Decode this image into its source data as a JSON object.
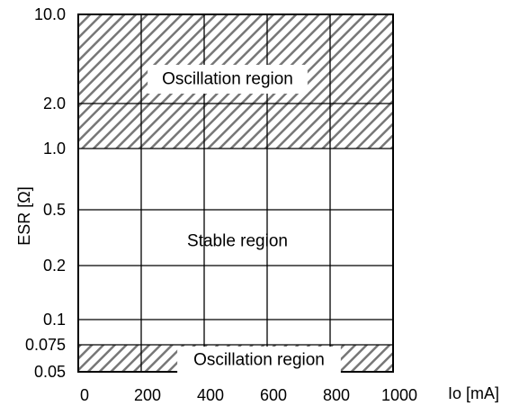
{
  "chart_data": {
    "type": "area",
    "title": "",
    "xlabel": "Io [mA]",
    "ylabel": "ESR [Ω]",
    "xlim": [
      0,
      1000
    ],
    "ylim": [
      0.05,
      10.0
    ],
    "x_ticks": [
      0,
      200,
      400,
      600,
      800,
      1000
    ],
    "x_tick_labels": [
      "0",
      "200",
      "400",
      "600",
      "800",
      "1000"
    ],
    "y_ticks": [
      0.05,
      0.075,
      0.1,
      0.2,
      0.5,
      1.0,
      2.0,
      10.0
    ],
    "y_tick_labels": [
      "0.05",
      "0.075",
      "0.1",
      "0.2",
      "0.5",
      "1.0",
      "2.0",
      "10.0"
    ],
    "grid": true,
    "regions": [
      {
        "label": "Oscillation region",
        "y_range": [
          1.0,
          10.0
        ],
        "x_range": [
          0,
          1000
        ],
        "pattern": "hatched"
      },
      {
        "label": "Stable region",
        "y_range": [
          0.075,
          1.0
        ],
        "x_range": [
          0,
          1000
        ],
        "pattern": "none"
      },
      {
        "label": "Oscillation region",
        "y_range": [
          0.05,
          0.075
        ],
        "x_range": [
          0,
          1000
        ],
        "pattern": "hatched"
      }
    ]
  },
  "colors": {
    "hatch": "#777777",
    "grid": "#000000",
    "background": "#ffffff"
  }
}
